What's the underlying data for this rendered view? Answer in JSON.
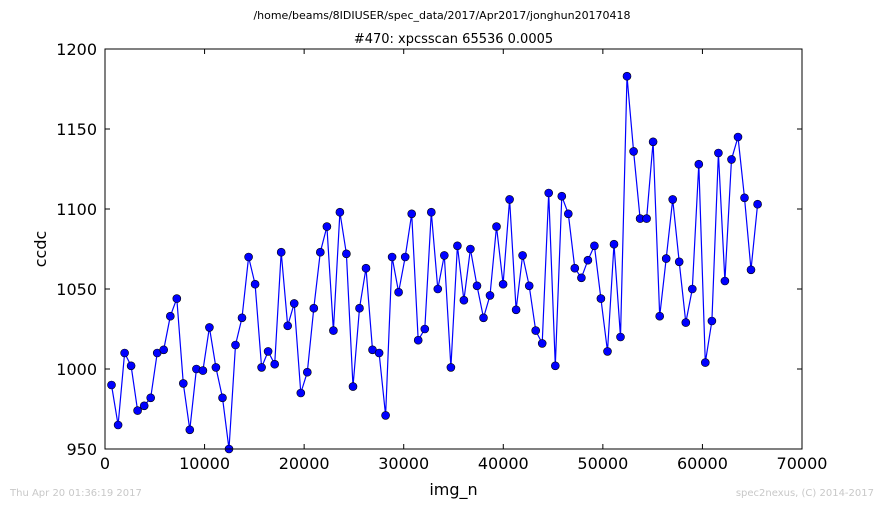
{
  "header": {
    "file_path": "/home/beams/8IDIUSER/spec_data/2017/Apr2017/jonghun20170418"
  },
  "footer": {
    "timestamp": "Thu Apr 20 01:36:19 2017",
    "credit": "spec2nexus, (C) 2014-2017"
  },
  "chart_data": {
    "type": "line",
    "title": "#470: xpcsscan 65536 0.0005",
    "xlabel": "img_n",
    "ylabel": "ccdc",
    "xlim": [
      0,
      70000
    ],
    "ylim": [
      950,
      1200
    ],
    "xticks": [
      0,
      10000,
      20000,
      30000,
      40000,
      50000,
      60000,
      70000
    ],
    "yticks": [
      950,
      1000,
      1050,
      1100,
      1150,
      1200
    ],
    "grid": false,
    "legend": "none",
    "marker": "circle",
    "color": "#0000ff",
    "series": [
      {
        "x": [
          655,
          1311,
          1966,
          2621,
          3277,
          3932,
          4588,
          5243,
          5898,
          6554,
          7209,
          7864,
          8520,
          9175,
          9830,
          10486,
          11141,
          11796,
          12452,
          13107,
          13763,
          14418,
          15073,
          15729,
          16384,
          17039,
          17695,
          18350,
          19005,
          19661,
          20316,
          20972,
          21627,
          22282,
          22938,
          23593,
          24248,
          24904,
          25559,
          26214,
          26870,
          27525,
          28180,
          28836,
          29491,
          30147,
          30802,
          31457,
          32113,
          32768,
          33423,
          34079,
          34734,
          35389,
          36045,
          36700,
          37356,
          38011,
          38666,
          39322,
          39977,
          40632,
          41288,
          41943,
          42598,
          43254,
          43909,
          44565,
          45220,
          45875,
          46531,
          47186,
          47841,
          48497,
          49152,
          49807,
          50463,
          51118,
          51773,
          52429,
          53084,
          53740,
          54395,
          55050,
          55706,
          56361,
          57016,
          57672,
          58327,
          58982,
          59638,
          60293,
          60949,
          61604,
          62259,
          62915,
          63570,
          64225,
          64881,
          65536
        ],
        "values": [
          990,
          965,
          1010,
          1002,
          974,
          977,
          982,
          1010,
          1012,
          1033,
          1044,
          991,
          962,
          1000,
          999,
          1026,
          1001,
          982,
          950,
          1015,
          1032,
          1070,
          1053,
          1001,
          1011,
          1003,
          1073,
          1027,
          1041,
          985,
          998,
          1038,
          1073,
          1089,
          1024,
          1098,
          1072,
          989,
          1038,
          1063,
          1012,
          1010,
          971,
          1070,
          1048,
          1070,
          1097,
          1018,
          1025,
          1098,
          1050,
          1071,
          1001,
          1077,
          1043,
          1075,
          1052,
          1032,
          1046,
          1089,
          1053,
          1106,
          1037,
          1071,
          1052,
          1024,
          1016,
          1110,
          1002,
          1108,
          1097,
          1063,
          1057,
          1068,
          1077,
          1044,
          1011,
          1078,
          1020,
          1183,
          1136,
          1094,
          1094,
          1142,
          1033,
          1069,
          1106,
          1067,
          1029,
          1050,
          1128,
          1004,
          1030,
          1135,
          1055,
          1131,
          1145,
          1107,
          1062,
          1103
        ]
      }
    ]
  }
}
